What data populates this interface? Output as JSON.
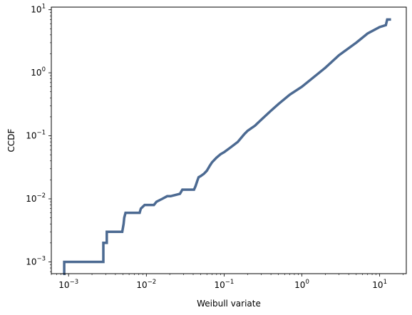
{
  "chart_data": {
    "type": "line",
    "title": "",
    "xlabel": "Weibull variate",
    "ylabel": "CCDF",
    "xscale": "log",
    "yscale": "log",
    "xlim": [
      0.0006,
      22
    ],
    "ylim": [
      0.00065,
      11
    ],
    "grid": false,
    "legend": "none",
    "line_color": "#4c6a92",
    "x_ticks": [
      {
        "value": 0.001,
        "base": "10",
        "exp": "−3"
      },
      {
        "value": 0.01,
        "base": "10",
        "exp": "−2"
      },
      {
        "value": 0.1,
        "base": "10",
        "exp": "−1"
      },
      {
        "value": 1,
        "base": "10",
        "exp": "0"
      },
      {
        "value": 10,
        "base": "10",
        "exp": "1"
      }
    ],
    "y_ticks": [
      {
        "value": 0.001,
        "base": "10",
        "exp": "−3"
      },
      {
        "value": 0.01,
        "base": "10",
        "exp": "−2"
      },
      {
        "value": 0.1,
        "base": "10",
        "exp": "−1"
      },
      {
        "value": 1,
        "base": "10",
        "exp": "0"
      },
      {
        "value": 10,
        "base": "10",
        "exp": "1"
      }
    ],
    "series": [
      {
        "style": "steps",
        "x": [
          0.00088,
          0.0028,
          0.0028,
          0.0031,
          0.0031,
          0.0049,
          0.0051,
          0.0052,
          0.0054,
          0.0082,
          0.0085,
          0.0095,
          0.0125,
          0.0135,
          0.016,
          0.0185,
          0.0205,
          0.027,
          0.029,
          0.041,
          0.043,
          0.045,
          0.047,
          0.05,
          0.055,
          0.06,
          0.065,
          0.07,
          0.08,
          0.09,
          0.1,
          0.12,
          0.15,
          0.18,
          0.2,
          0.25,
          0.3,
          0.4,
          0.5,
          0.7,
          1.0,
          1.5,
          2.0,
          3.0,
          5.0,
          7.0,
          10.0,
          12.0,
          12.5,
          14.0
        ],
        "y": [
          0.001,
          0.001,
          0.002,
          0.002,
          0.003,
          0.003,
          0.004,
          0.005,
          0.006,
          0.006,
          0.007,
          0.008,
          0.008,
          0.009,
          0.01,
          0.011,
          0.011,
          0.012,
          0.014,
          0.014,
          0.016,
          0.019,
          0.022,
          0.023,
          0.025,
          0.028,
          0.033,
          0.038,
          0.045,
          0.051,
          0.055,
          0.065,
          0.08,
          0.105,
          0.12,
          0.145,
          0.18,
          0.25,
          0.32,
          0.45,
          0.6,
          0.9,
          1.2,
          1.9,
          3.0,
          4.2,
          5.3,
          5.7,
          7.0,
          7.0
        ]
      }
    ]
  }
}
